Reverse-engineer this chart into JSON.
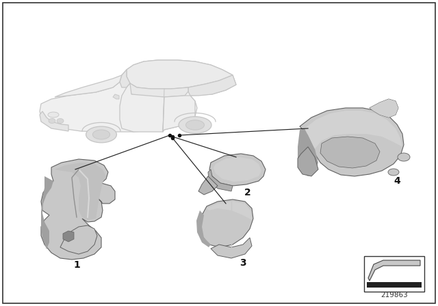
{
  "background_color": "#ffffff",
  "fig_width": 6.4,
  "fig_height": 4.48,
  "dpi": 100,
  "diagram_number": "219863",
  "car_color": "#e8e8e8",
  "car_edge": "#c0c0c0",
  "part_light": "#c8c8c8",
  "part_mid": "#a8a8a8",
  "part_dark": "#888888",
  "part_edge": "#606060",
  "line_color": "#1a1a1a",
  "text_color": "#1a1a1a"
}
